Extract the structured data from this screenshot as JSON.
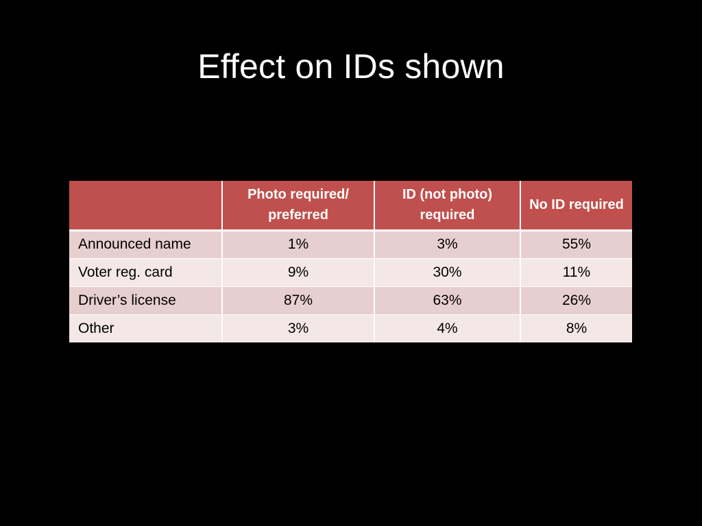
{
  "slide": {
    "title": "Effect on IDs shown"
  },
  "table": {
    "headers": [
      "",
      "Photo required/ preferred",
      "ID (not photo) required",
      "No ID required"
    ],
    "rows": [
      [
        "Announced name",
        "1%",
        "3%",
        "55%"
      ],
      [
        "Voter reg. card",
        "9%",
        "30%",
        "11%"
      ],
      [
        "Driver’s license",
        "87%",
        "63%",
        "26%"
      ],
      [
        "Other",
        "3%",
        "4%",
        "8%"
      ]
    ]
  },
  "colors": {
    "background": "#000000",
    "title_text": "#ffffff",
    "header_fill": "#c0504d",
    "header_text": "#ffffff",
    "row_band_dark": "#e8cfcf",
    "row_band_light": "#f3e7e7"
  }
}
